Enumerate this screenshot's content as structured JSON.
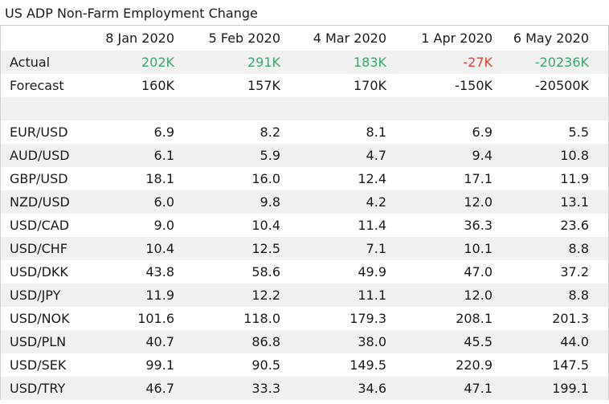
{
  "title": "US ADP Non-Farm Employment Change",
  "columns": [
    "8 Jan 2020",
    "5 Feb 2020",
    "4 Mar 2020",
    "1 Apr 2020",
    "6 May 2020"
  ],
  "actual": {
    "label": "Actual",
    "values": [
      "202K",
      "291K",
      "183K",
      "-27K",
      "-20236K"
    ],
    "colors": [
      "#3aa76d",
      "#3aa76d",
      "#3aa76d",
      "#e0413a",
      "#3aa76d"
    ]
  },
  "forecast": {
    "label": "Forecast",
    "values": [
      "160K",
      "157K",
      "170K",
      "-150K",
      "-20500K"
    ]
  },
  "pairs": [
    {
      "name": "EUR/USD",
      "values": [
        "6.9",
        "8.2",
        "8.1",
        "6.9",
        "5.5"
      ]
    },
    {
      "name": "AUD/USD",
      "values": [
        "6.1",
        "5.9",
        "4.7",
        "9.4",
        "10.8"
      ]
    },
    {
      "name": "GBP/USD",
      "values": [
        "18.1",
        "16.0",
        "12.4",
        "17.1",
        "11.9"
      ]
    },
    {
      "name": "NZD/USD",
      "values": [
        "6.0",
        "9.8",
        "4.2",
        "12.0",
        "13.1"
      ]
    },
    {
      "name": "USD/CAD",
      "values": [
        "9.0",
        "10.4",
        "11.4",
        "36.3",
        "23.6"
      ]
    },
    {
      "name": "USD/CHF",
      "values": [
        "10.4",
        "12.5",
        "7.1",
        "10.1",
        "8.8"
      ]
    },
    {
      "name": "USD/DKK",
      "values": [
        "43.8",
        "58.6",
        "49.9",
        "47.0",
        "37.2"
      ]
    },
    {
      "name": "USD/JPY",
      "values": [
        "11.9",
        "12.2",
        "11.1",
        "12.0",
        "8.8"
      ]
    },
    {
      "name": "USD/NOK",
      "values": [
        "101.6",
        "118.0",
        "179.3",
        "208.1",
        "201.3"
      ]
    },
    {
      "name": "USD/PLN",
      "values": [
        "40.7",
        "86.8",
        "38.0",
        "45.5",
        "44.0"
      ]
    },
    {
      "name": "USD/SEK",
      "values": [
        "99.1",
        "90.5",
        "149.5",
        "220.9",
        "147.5"
      ]
    },
    {
      "name": "USD/TRY",
      "values": [
        "46.7",
        "33.3",
        "34.6",
        "47.1",
        "199.1"
      ]
    }
  ]
}
